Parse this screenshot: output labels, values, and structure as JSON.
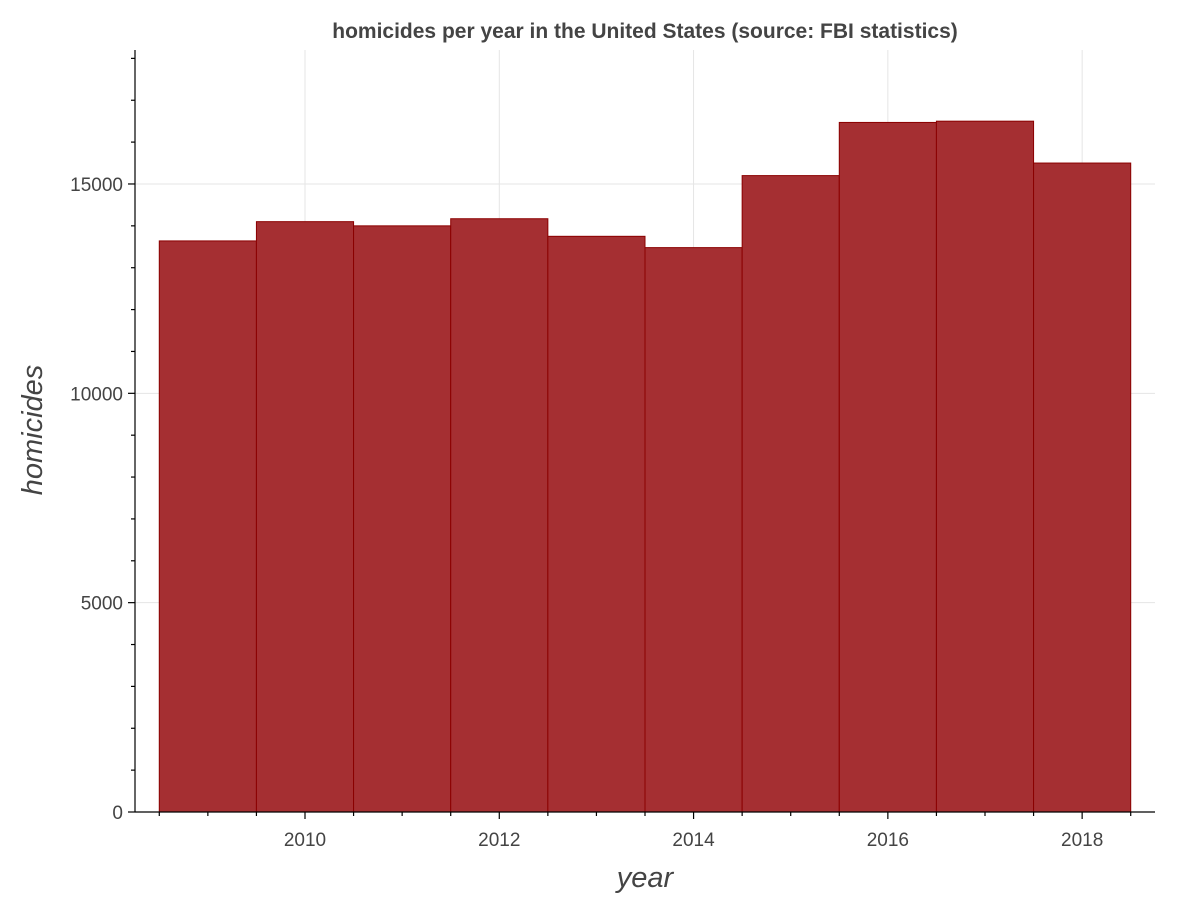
{
  "colors": {
    "bar_fill": "#a52f32",
    "bar_stroke": "#8b0000"
  },
  "chart_data": {
    "type": "bar",
    "title": "homicides per year in the United States (source: FBI statistics)",
    "xlabel": "year",
    "ylabel": "homicides",
    "categories": [
      2009,
      2010,
      2011,
      2012,
      2013,
      2014,
      2015,
      2016,
      2017,
      2018
    ],
    "values": [
      13640,
      14100,
      14000,
      14170,
      13750,
      13480,
      15200,
      16470,
      16500,
      15500
    ],
    "xlim": [
      2008.25,
      2018.75
    ],
    "ylim": [
      0,
      18200
    ],
    "x_ticks": [
      2010,
      2012,
      2014,
      2016,
      2018
    ],
    "y_ticks": [
      0,
      5000,
      10000,
      15000
    ],
    "grid": true
  }
}
